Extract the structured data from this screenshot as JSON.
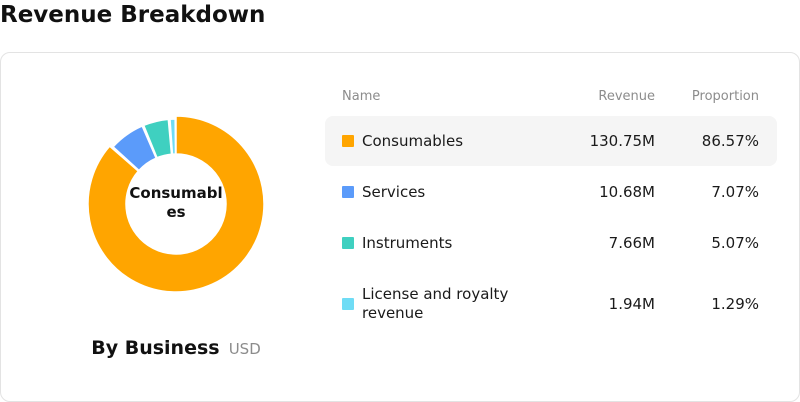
{
  "page": {
    "title": "Revenue Breakdown"
  },
  "chart": {
    "center_label": "Consumables",
    "caption_title": "By Business",
    "caption_unit": "USD"
  },
  "table": {
    "headers": {
      "name": "Name",
      "revenue": "Revenue",
      "proportion": "Proportion"
    },
    "rows": [
      {
        "name": "Consumables",
        "revenue": "130.75M",
        "proportion": "86.57%",
        "color": "#FFA500"
      },
      {
        "name": "Services",
        "revenue": "10.68M",
        "proportion": "7.07%",
        "color": "#5B9BFA"
      },
      {
        "name": "Instruments",
        "revenue": "7.66M",
        "proportion": "5.07%",
        "color": "#3FD0C0"
      },
      {
        "name": "License and royalty revenue",
        "revenue": "1.94M",
        "proportion": "1.29%",
        "color": "#6FDCF5"
      }
    ],
    "highlighted_row": 0
  },
  "chart_data": {
    "type": "pie",
    "donut": true,
    "categories": [
      "Consumables",
      "Services",
      "Instruments",
      "License and royalty revenue"
    ],
    "values": [
      130.75,
      10.68,
      7.66,
      1.94
    ],
    "percentages": [
      86.57,
      7.07,
      5.07,
      1.29
    ],
    "colors": [
      "#FFA500",
      "#5B9BFA",
      "#3FD0C0",
      "#6FDCF5"
    ],
    "title": "By Business",
    "unit": "USD",
    "highlighted": "Consumables"
  }
}
